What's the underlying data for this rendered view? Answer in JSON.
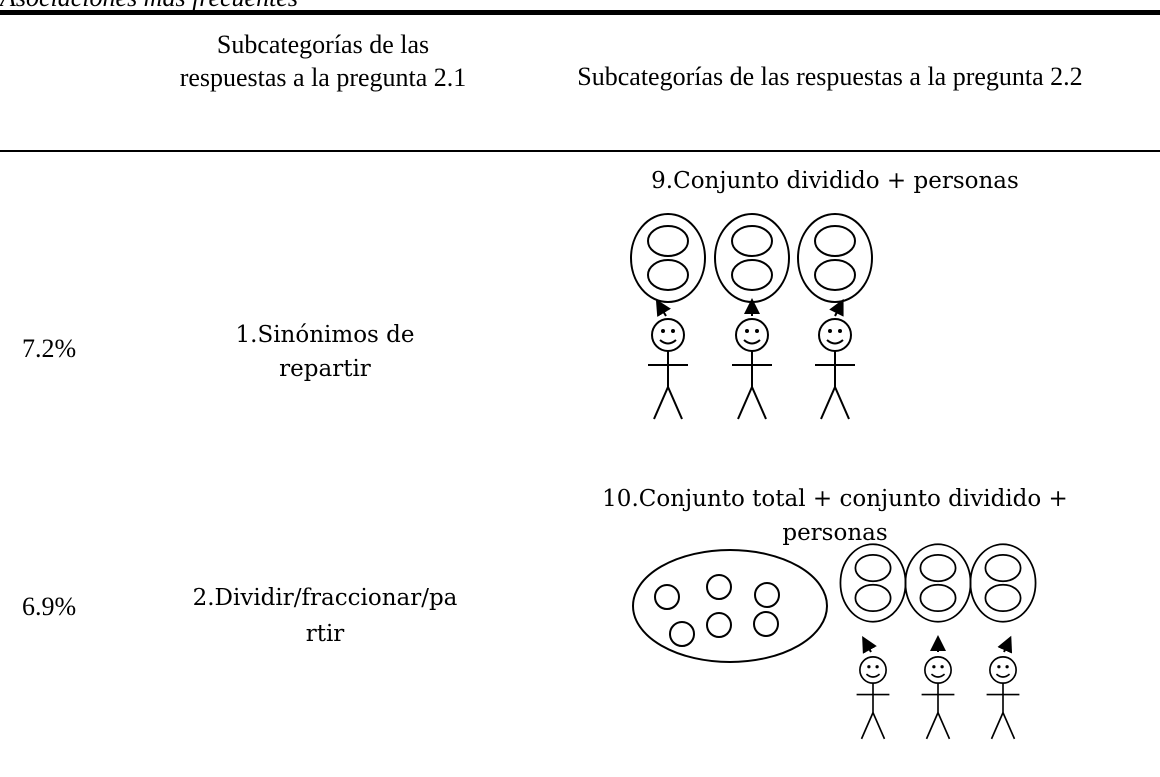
{
  "caption": "Asociaciones más frecuentes",
  "table": {
    "header": [
      "Subcategorías de las respuestas a la pregunta 2.1",
      "Subcategorías de las respuestas a la pregunta 2.2"
    ],
    "rows": [
      [
        "7.2%",
        "1.Sinónimos de repartir",
        "9.Conjunto dividido + personas"
      ],
      [
        "6.9%",
        "2.Dividir/fraccionar/partir",
        "10.Conjunto total + conjunto dividido + personas"
      ]
    ]
  }
}
